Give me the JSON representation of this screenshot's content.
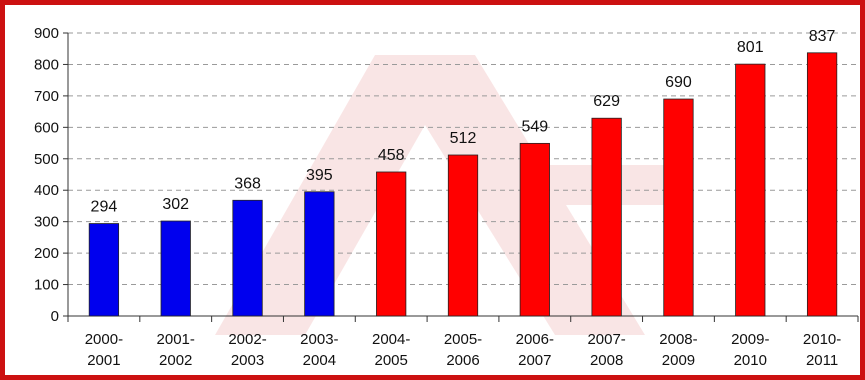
{
  "chart_data": {
    "type": "bar",
    "title": "",
    "xlabel": "",
    "ylabel": "",
    "ylim": [
      0,
      900
    ],
    "yticks": [
      0,
      100,
      200,
      300,
      400,
      500,
      600,
      700,
      800,
      900
    ],
    "grid": true,
    "categories": [
      [
        "2000-",
        "2001"
      ],
      [
        "2001-",
        "2002"
      ],
      [
        "2002-",
        "2003"
      ],
      [
        "2003-",
        "2004"
      ],
      [
        "2004-",
        "2005"
      ],
      [
        "2005-",
        "2006"
      ],
      [
        "2006-",
        "2007"
      ],
      [
        "2007-",
        "2008"
      ],
      [
        "2008-",
        "2009"
      ],
      [
        "2009-",
        "2010"
      ],
      [
        "2010-",
        "2011"
      ]
    ],
    "values": [
      294,
      302,
      368,
      395,
      458,
      512,
      549,
      629,
      690,
      801,
      837
    ],
    "data_labels": [
      "294",
      "302",
      "368",
      "395",
      "458",
      "512",
      "549",
      "629",
      "690",
      "801",
      "837"
    ],
    "bar_colors": [
      "#0000ee",
      "#0000ee",
      "#0000ee",
      "#0000ee",
      "#ff0000",
      "#ff0000",
      "#ff0000",
      "#ff0000",
      "#ff0000",
      "#ff0000",
      "#ff0000"
    ],
    "frame_color": "#cc1111"
  }
}
